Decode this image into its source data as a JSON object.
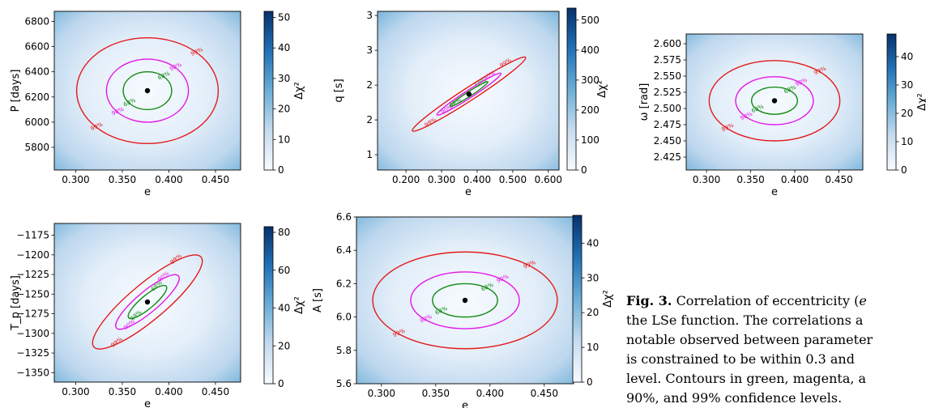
{
  "chart_data": [
    {
      "type": "heatmap",
      "panel_id": "p_e_P",
      "xlabel": "e",
      "ylabel": "P [days]",
      "xlim": [
        0.277,
        0.477
      ],
      "ylim": [
        5620,
        6880
      ],
      "xticks": [
        0.3,
        0.35,
        0.4,
        0.45
      ],
      "yticks": [
        5800,
        6000,
        6200,
        6400,
        6600,
        6800
      ],
      "colorbar_label": "Δχ²",
      "colorbar_range": [
        0,
        52
      ],
      "colorbar_ticks": [
        0,
        10,
        20,
        30,
        40,
        50
      ],
      "best_fit": {
        "x": 0.377,
        "y": 6250
      },
      "contours": [
        {
          "level": "68%",
          "color": "#138a13",
          "ellipse": {
            "cx": 0.377,
            "cy": 6250,
            "rx": 0.026,
            "ry": 150,
            "rot": 0
          }
        },
        {
          "level": "90%",
          "color": "#e617e6",
          "ellipse": {
            "cx": 0.377,
            "cy": 6250,
            "rx": 0.044,
            "ry": 250,
            "rot": 0
          }
        },
        {
          "level": "99%",
          "color": "#e31a1a",
          "ellipse": {
            "cx": 0.377,
            "cy": 6250,
            "rx": 0.076,
            "ry": 420,
            "rot": 0
          }
        }
      ]
    },
    {
      "type": "heatmap",
      "panel_id": "p_e_q",
      "xlabel": "e",
      "ylabel": "q [s]",
      "xlim": [
        0.12,
        0.63
      ],
      "ylim": [
        0.78,
        3.06
      ],
      "xticks": [
        0.2,
        0.3,
        0.4,
        0.5,
        0.6
      ],
      "yticks": [
        1.0,
        1.5,
        2.0,
        2.5,
        3.0
      ],
      "colorbar_label": "Δχ²",
      "colorbar_range": [
        0,
        540
      ],
      "colorbar_ticks": [
        0,
        100,
        200,
        300,
        400,
        500
      ],
      "best_fit": {
        "x": 0.377,
        "y": 1.87
      },
      "contours": [
        {
          "level": "68%",
          "color": "#138a13",
          "ellipse": {
            "cx": 0.377,
            "cy": 1.87,
            "rx": 0.065,
            "ry": 0.08,
            "rot": 33
          }
        },
        {
          "level": "90%",
          "color": "#e617e6",
          "ellipse": {
            "cx": 0.377,
            "cy": 1.87,
            "rx": 0.11,
            "ry": 0.13,
            "rot": 33
          }
        },
        {
          "level": "99%",
          "color": "#e31a1a",
          "ellipse": {
            "cx": 0.377,
            "cy": 1.87,
            "rx": 0.195,
            "ry": 0.22,
            "rot": 33
          }
        }
      ]
    },
    {
      "type": "heatmap",
      "panel_id": "p_e_omega",
      "xlabel": "e",
      "ylabel": "ω [rad]",
      "xlim": [
        0.277,
        0.477
      ],
      "ylim": [
        2.405,
        2.615
      ],
      "xticks": [
        0.3,
        0.35,
        0.4,
        0.45
      ],
      "yticks": [
        2.425,
        2.45,
        2.475,
        2.5,
        2.525,
        2.55,
        2.575,
        2.6
      ],
      "ytick_labels": [
        "2.425",
        "2.450",
        "2.475",
        "2.500",
        "2.525",
        "2.550",
        "2.575",
        "2.600"
      ],
      "colorbar_label": "Δχ²",
      "colorbar_range": [
        0,
        48
      ],
      "colorbar_ticks": [
        0,
        10,
        20,
        30,
        40
      ],
      "best_fit": {
        "x": 0.377,
        "y": 2.512
      },
      "contours": [
        {
          "level": "68%",
          "color": "#138a13",
          "ellipse": {
            "cx": 0.377,
            "cy": 2.512,
            "rx": 0.026,
            "ry": 0.021,
            "rot": 0
          }
        },
        {
          "level": "90%",
          "color": "#e617e6",
          "ellipse": {
            "cx": 0.377,
            "cy": 2.512,
            "rx": 0.044,
            "ry": 0.037,
            "rot": 0
          }
        },
        {
          "level": "99%",
          "color": "#e31a1a",
          "ellipse": {
            "cx": 0.377,
            "cy": 2.512,
            "rx": 0.074,
            "ry": 0.062,
            "rot": 0
          }
        }
      ]
    },
    {
      "type": "heatmap",
      "panel_id": "p_e_Tp",
      "xlabel": "e",
      "ylabel": "T_p [days]",
      "xlim": [
        0.277,
        0.477
      ],
      "ylim": [
        -1362,
        -1160
      ],
      "xticks": [
        0.3,
        0.35,
        0.4,
        0.45
      ],
      "yticks": [
        -1350,
        -1325,
        -1300,
        -1275,
        -1250,
        -1225,
        -1200,
        -1175
      ],
      "colorbar_label": "Δχ²",
      "colorbar_range": [
        0,
        83
      ],
      "colorbar_ticks": [
        0,
        20,
        40,
        60,
        80
      ],
      "best_fit": {
        "x": 0.377,
        "y": -1260
      },
      "contours": [
        {
          "level": "68%",
          "color": "#138a13",
          "ellipse": {
            "cx": 0.377,
            "cy": -1260,
            "rx": 0.022,
            "ry": 20,
            "rot": 40
          }
        },
        {
          "level": "90%",
          "color": "#e617e6",
          "ellipse": {
            "cx": 0.377,
            "cy": -1260,
            "rx": 0.037,
            "ry": 32,
            "rot": 40
          }
        },
        {
          "level": "99%",
          "color": "#e31a1a",
          "ellipse": {
            "cx": 0.377,
            "cy": -1260,
            "rx": 0.064,
            "ry": 55,
            "rot": 40
          }
        }
      ]
    },
    {
      "type": "heatmap",
      "panel_id": "p_e_A",
      "xlabel": "e",
      "ylabel": "A [s]",
      "xlim": [
        0.277,
        0.477
      ],
      "ylim": [
        5.6,
        6.6
      ],
      "xticks": [
        0.3,
        0.35,
        0.4,
        0.45
      ],
      "yticks": [
        5.6,
        5.8,
        6.0,
        6.2,
        6.4,
        6.6
      ],
      "colorbar_label": "Δχ²",
      "colorbar_range": [
        0,
        48
      ],
      "colorbar_ticks": [
        0,
        10,
        20,
        30,
        40
      ],
      "best_fit": {
        "x": 0.377,
        "y": 6.1
      },
      "contours": [
        {
          "level": "68%",
          "color": "#138a13",
          "ellipse": {
            "cx": 0.377,
            "cy": 6.1,
            "rx": 0.03,
            "ry": 0.1,
            "rot": 0
          }
        },
        {
          "level": "90%",
          "color": "#e617e6",
          "ellipse": {
            "cx": 0.377,
            "cy": 6.1,
            "rx": 0.05,
            "ry": 0.17,
            "rot": 0
          }
        },
        {
          "level": "99%",
          "color": "#e31a1a",
          "ellipse": {
            "cx": 0.377,
            "cy": 6.1,
            "rx": 0.085,
            "ry": 0.29,
            "rot": 0
          }
        }
      ]
    }
  ],
  "caption": {
    "label": "Fig. 3.",
    "line1": "Correlation of eccentricity (",
    "line1_tail": "e",
    "line2": "the LSe function. The correlations a",
    "line3": "notable observed between parameter",
    "line4": "is constrained to be within 0.3 and",
    "line5": "level. Contours in green, magenta, a",
    "line6": "90%, and 99% confidence levels."
  }
}
